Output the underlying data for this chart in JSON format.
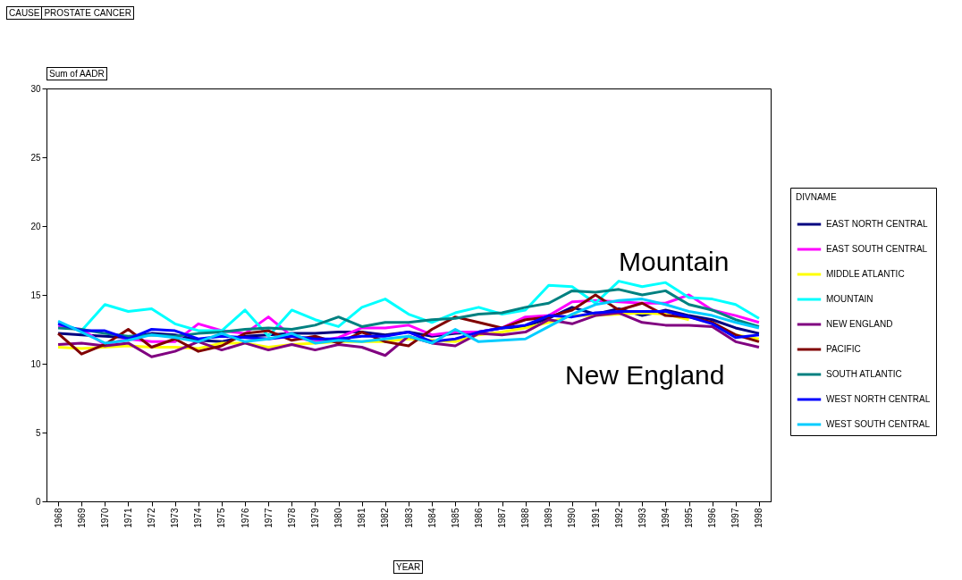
{
  "chart_data": {
    "type": "line",
    "title": "CAUSE",
    "subtitle": "PROSTATE CANCER",
    "xlabel": "YEAR",
    "ylabel": "Sum of AADR",
    "legend_title": "DIVNAME",
    "legend": "right",
    "grid": false,
    "marker": "none",
    "line_style": "solid",
    "annotations": [
      "Mountain",
      "New England"
    ],
    "categories": [
      "1968",
      "1969",
      "1970",
      "1971",
      "1972",
      "1973",
      "1974",
      "1975",
      "1976",
      "1977",
      "1978",
      "1979",
      "1980",
      "1981",
      "1982",
      "1983",
      "1984",
      "1985",
      "1986",
      "1987",
      "1988",
      "1989",
      "1990",
      "1991",
      "1992",
      "1993",
      "1994",
      "1995",
      "1996",
      "1997",
      "1998"
    ],
    "ylim": [
      0,
      30
    ],
    "yticks": [
      0,
      5,
      10,
      15,
      20,
      25,
      30
    ],
    "series": [
      {
        "name": "EAST NORTH CENTRAL",
        "color": "#000080",
        "values": [
          12.2,
          12.1,
          12.0,
          11.9,
          12.2,
          12.1,
          11.7,
          11.6,
          12.0,
          12.1,
          12.2,
          12.2,
          12.3,
          12.3,
          12.1,
          12.3,
          12.0,
          12.2,
          12.3,
          12.6,
          12.7,
          13.3,
          14.1,
          13.6,
          14.0,
          13.5,
          13.9,
          13.5,
          13.2,
          12.6,
          12.2
        ]
      },
      {
        "name": "EAST SOUTH CENTRAL",
        "color": "#ff00ff",
        "values": [
          12.7,
          12.5,
          11.4,
          11.8,
          11.6,
          11.6,
          12.9,
          12.4,
          12.2,
          13.4,
          12.0,
          11.6,
          11.9,
          12.6,
          12.6,
          12.8,
          12.1,
          12.3,
          12.3,
          12.6,
          13.4,
          13.5,
          14.5,
          14.6,
          14.5,
          14.4,
          14.4,
          15.0,
          13.9,
          13.5,
          13.0
        ]
      },
      {
        "name": "MIDDLE ATLANTIC",
        "color": "#ffff00",
        "values": [
          11.2,
          11.1,
          11.2,
          11.3,
          11.2,
          11.2,
          11.1,
          11.5,
          11.5,
          11.2,
          11.4,
          11.5,
          11.6,
          11.6,
          11.6,
          11.8,
          11.7,
          11.6,
          12.1,
          12.3,
          12.6,
          13.0,
          13.5,
          13.5,
          13.6,
          13.7,
          13.6,
          13.2,
          null,
          12.1,
          11.8
        ]
      },
      {
        "name": "MOUNTAIN",
        "color": "#00ffff",
        "values": [
          13.0,
          12.4,
          14.3,
          13.8,
          14.0,
          12.9,
          12.4,
          12.4,
          13.9,
          12.0,
          13.9,
          13.2,
          12.7,
          14.1,
          14.7,
          13.6,
          13.0,
          13.7,
          14.1,
          13.6,
          13.9,
          15.7,
          15.6,
          14.4,
          16.0,
          15.6,
          15.9,
          14.8,
          14.7,
          14.3,
          13.3
        ]
      },
      {
        "name": "NEW ENGLAND",
        "color": "#800080",
        "values": [
          11.4,
          11.5,
          11.3,
          11.5,
          10.5,
          10.9,
          11.6,
          11.0,
          11.5,
          11.0,
          11.4,
          11.0,
          11.4,
          11.2,
          10.6,
          12.0,
          11.5,
          11.3,
          12.2,
          12.1,
          12.3,
          13.2,
          12.9,
          13.5,
          13.7,
          13.0,
          12.8,
          12.8,
          12.7,
          11.6,
          11.2
        ]
      },
      {
        "name": "PACIFIC",
        "color": "#800000",
        "values": [
          12.2,
          10.7,
          11.4,
          12.5,
          11.2,
          11.8,
          10.9,
          11.3,
          12.2,
          12.4,
          11.7,
          12.0,
          11.5,
          12.3,
          11.6,
          11.3,
          12.5,
          13.4,
          13.0,
          12.6,
          13.2,
          13.4,
          13.9,
          15.0,
          13.9,
          14.4,
          13.5,
          13.4,
          13.0,
          12.1,
          11.6
        ]
      },
      {
        "name": "SOUTH ATLANTIC",
        "color": "#008080",
        "values": [
          12.6,
          12.5,
          12.2,
          12.0,
          12.1,
          12.0,
          12.2,
          12.3,
          12.5,
          12.6,
          12.5,
          12.8,
          13.4,
          12.7,
          13.0,
          13.0,
          13.2,
          13.3,
          13.6,
          13.7,
          14.1,
          14.4,
          15.3,
          15.2,
          15.4,
          15.0,
          15.3,
          14.3,
          13.9,
          13.2,
          12.7
        ]
      },
      {
        "name": "WEST NORTH CENTRAL",
        "color": "#0000ff",
        "values": [
          12.9,
          12.4,
          12.4,
          11.8,
          12.5,
          12.4,
          11.8,
          12.0,
          11.9,
          11.8,
          12.0,
          11.8,
          11.8,
          12.0,
          12.0,
          12.3,
          11.6,
          11.8,
          12.3,
          12.6,
          12.8,
          13.5,
          13.4,
          13.7,
          13.8,
          13.8,
          13.8,
          13.4,
          12.9,
          11.9,
          12.1
        ]
      },
      {
        "name": "WEST SOUTH CENTRAL",
        "color": "#00ccff",
        "values": [
          13.1,
          12.3,
          11.5,
          11.7,
          12.1,
          11.9,
          11.6,
          12.2,
          11.6,
          11.8,
          12.2,
          11.5,
          11.7,
          11.6,
          11.8,
          12.0,
          11.5,
          12.5,
          11.6,
          11.7,
          11.8,
          12.7,
          13.6,
          14.3,
          14.6,
          14.7,
          14.3,
          13.8,
          13.5,
          13.0,
          12.6
        ]
      }
    ]
  }
}
